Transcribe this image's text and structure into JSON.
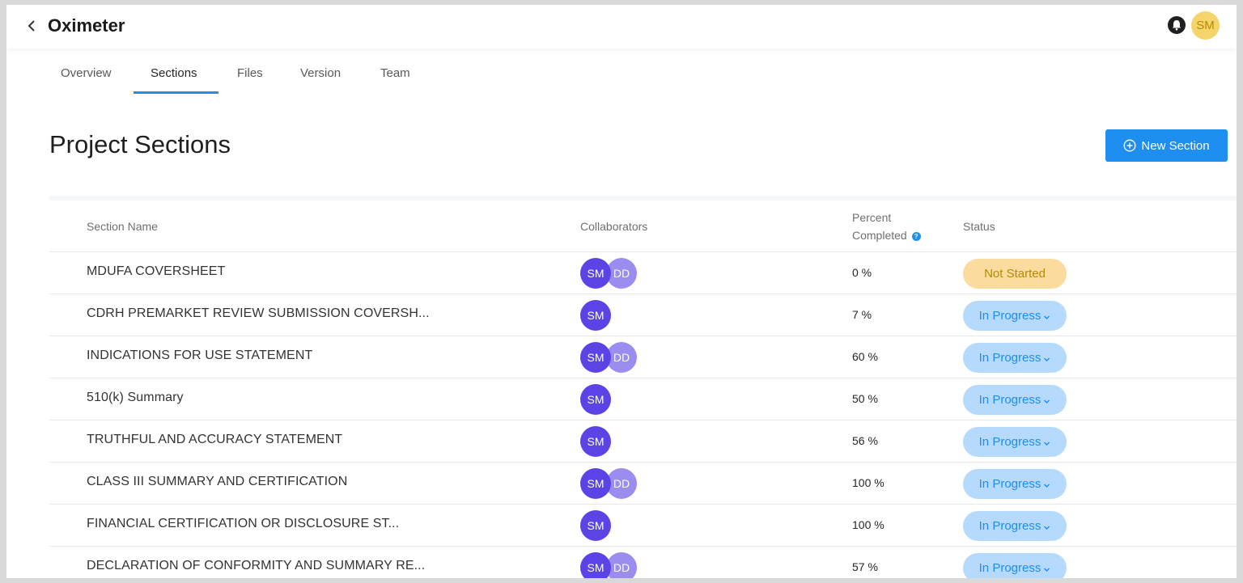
{
  "header": {
    "title": "Oximeter",
    "user_initials": "SM"
  },
  "tabs": [
    "Overview",
    "Sections",
    "Files",
    "Version",
    "Team"
  ],
  "active_tab": "Sections",
  "page": {
    "title": "Project Sections",
    "new_button_label": "New Section"
  },
  "table": {
    "headers": {
      "name": "Section Name",
      "collaborators": "Collaborators",
      "percent_line1": "Percent",
      "percent_line2": "Completed",
      "status": "Status"
    },
    "rows": [
      {
        "name": "MDUFA COVERSHEET",
        "collaborators": [
          "SM",
          "DD"
        ],
        "percent": "0 %",
        "status": "Not Started"
      },
      {
        "name": "CDRH PREMARKET REVIEW SUBMISSION COVERSH...",
        "collaborators": [
          "SM"
        ],
        "percent": "7 %",
        "status": "In Progress"
      },
      {
        "name": "INDICATIONS FOR USE STATEMENT",
        "collaborators": [
          "SM",
          "DD"
        ],
        "percent": "60 %",
        "status": "In Progress"
      },
      {
        "name": "510(k) Summary",
        "collaborators": [
          "SM"
        ],
        "percent": "50 %",
        "status": "In Progress"
      },
      {
        "name": "TRUTHFUL AND ACCURACY STATEMENT",
        "collaborators": [
          "SM"
        ],
        "percent": "56 %",
        "status": "In Progress"
      },
      {
        "name": "CLASS III SUMMARY AND CERTIFICATION",
        "collaborators": [
          "SM",
          "DD"
        ],
        "percent": "100 %",
        "status": "In Progress"
      },
      {
        "name": "FINANCIAL CERTIFICATION OR DISCLOSURE ST...",
        "collaborators": [
          "SM"
        ],
        "percent": "100 %",
        "status": "In Progress"
      },
      {
        "name": "DECLARATION OF CONFORMITY AND SUMMARY RE...",
        "collaborators": [
          "SM",
          "DD"
        ],
        "percent": "57 %",
        "status": "In Progress"
      }
    ]
  },
  "colors": {
    "accent": "#1e8ef0",
    "avatar_sm": "#5b44e6",
    "avatar_dd": "#9b8cf0",
    "not_started_bg": "#fbdb9e",
    "in_progress_bg": "#b5dafd"
  }
}
